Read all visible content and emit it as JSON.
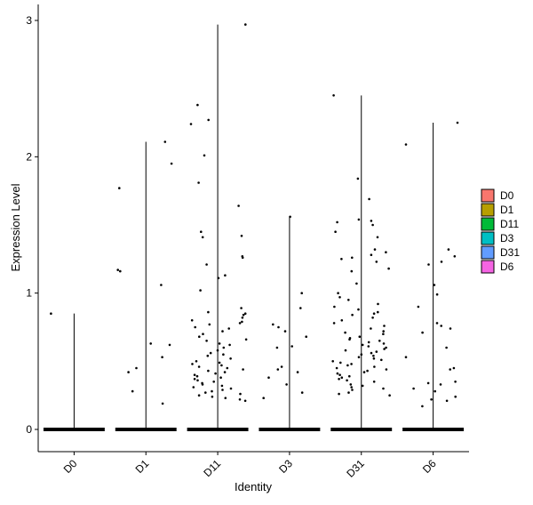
{
  "chart_data": {
    "type": "violin",
    "title": "",
    "xlabel": "Identity",
    "ylabel": "Expression Level",
    "ylim": [
      -0.17,
      3.12
    ],
    "yticks": [
      0,
      1,
      2,
      3
    ],
    "grid": false,
    "legend_position": "right",
    "categories": [
      "D0",
      "D1",
      "D11",
      "D3",
      "D31",
      "D6"
    ],
    "series": [
      {
        "name": "D0",
        "color": "#F8766D",
        "max": 0.85,
        "nonzero_values": [
          0.85
        ]
      },
      {
        "name": "D1",
        "color": "#B79F00",
        "max": 2.11,
        "nonzero_values": [
          2.11,
          1.95,
          1.77,
          1.17,
          1.16,
          1.06,
          0.63,
          0.62,
          0.53,
          0.45,
          0.42,
          0.28,
          0.19
        ]
      },
      {
        "name": "D11",
        "color": "#00BA38",
        "max": 2.97,
        "nonzero_values": [
          2.97,
          2.38,
          2.27,
          2.24,
          2.01,
          1.81,
          1.64,
          1.45,
          1.42,
          1.41,
          1.27,
          1.26,
          1.21,
          1.13,
          1.11,
          1.02,
          0.89,
          0.86,
          0.85,
          0.84,
          0.82,
          0.8,
          0.79,
          0.78,
          0.77,
          0.75,
          0.74,
          0.72,
          0.7,
          0.68,
          0.66,
          0.65,
          0.63,
          0.62,
          0.6,
          0.58,
          0.56,
          0.55,
          0.54,
          0.52,
          0.5,
          0.49,
          0.48,
          0.47,
          0.46,
          0.45,
          0.44,
          0.43,
          0.42,
          0.41,
          0.4,
          0.39,
          0.38,
          0.37,
          0.36,
          0.35,
          0.34,
          0.33,
          0.32,
          0.31,
          0.3,
          0.29,
          0.28,
          0.27,
          0.26,
          0.25,
          0.24,
          0.23,
          0.22,
          0.21
        ]
      },
      {
        "name": "D3",
        "color": "#00BFC4",
        "max": 1.56,
        "nonzero_values": [
          1.56,
          1.0,
          0.89,
          0.77,
          0.75,
          0.72,
          0.68,
          0.61,
          0.6,
          0.46,
          0.44,
          0.42,
          0.38,
          0.33,
          0.27,
          0.23
        ]
      },
      {
        "name": "D31",
        "color": "#619CFF",
        "max": 2.45,
        "nonzero_values": [
          2.45,
          1.84,
          1.69,
          1.54,
          1.53,
          1.52,
          1.5,
          1.45,
          1.41,
          1.32,
          1.3,
          1.28,
          1.26,
          1.25,
          1.23,
          1.18,
          1.16,
          1.07,
          1.0,
          0.97,
          0.95,
          0.92,
          0.9,
          0.88,
          0.86,
          0.85,
          0.84,
          0.82,
          0.8,
          0.78,
          0.76,
          0.74,
          0.72,
          0.71,
          0.7,
          0.68,
          0.67,
          0.66,
          0.65,
          0.64,
          0.63,
          0.62,
          0.61,
          0.6,
          0.59,
          0.58,
          0.57,
          0.56,
          0.55,
          0.54,
          0.53,
          0.52,
          0.51,
          0.5,
          0.49,
          0.48,
          0.47,
          0.46,
          0.45,
          0.44,
          0.43,
          0.42,
          0.41,
          0.4,
          0.39,
          0.38,
          0.37,
          0.36,
          0.35,
          0.33,
          0.32,
          0.31,
          0.3,
          0.29,
          0.27,
          0.26,
          0.25
        ]
      },
      {
        "name": "D6",
        "color": "#F564E3",
        "max": 2.25,
        "nonzero_values": [
          2.25,
          2.09,
          1.32,
          1.27,
          1.23,
          1.21,
          1.06,
          0.99,
          0.9,
          0.78,
          0.76,
          0.74,
          0.71,
          0.6,
          0.53,
          0.45,
          0.44,
          0.35,
          0.34,
          0.33,
          0.3,
          0.28,
          0.24,
          0.22,
          0.21,
          0.17
        ]
      }
    ]
  }
}
